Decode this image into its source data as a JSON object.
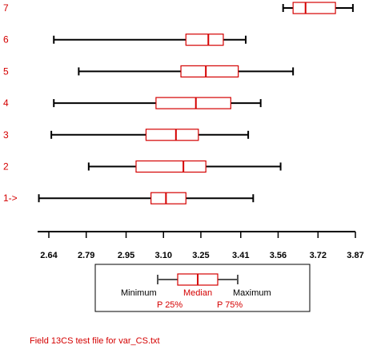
{
  "chart_data": {
    "type": "boxplot",
    "orientation": "horizontal",
    "categories": [
      "7",
      "6",
      "5",
      "4",
      "3",
      "2",
      "1->"
    ],
    "series": [
      {
        "label": "7",
        "min": 3.58,
        "q1": 3.62,
        "median": 3.67,
        "q3": 3.79,
        "max": 3.86
      },
      {
        "label": "6",
        "min": 2.66,
        "q1": 3.19,
        "median": 3.28,
        "q3": 3.34,
        "max": 3.43
      },
      {
        "label": "5",
        "min": 2.76,
        "q1": 3.17,
        "median": 3.27,
        "q3": 3.4,
        "max": 3.62
      },
      {
        "label": "4",
        "min": 2.66,
        "q1": 3.07,
        "median": 3.23,
        "q3": 3.37,
        "max": 3.49
      },
      {
        "label": "3",
        "min": 2.65,
        "q1": 3.03,
        "median": 3.15,
        "q3": 3.24,
        "max": 3.44
      },
      {
        "label": "2",
        "min": 2.8,
        "q1": 2.99,
        "median": 3.18,
        "q3": 3.27,
        "max": 3.57
      },
      {
        "label": "1->",
        "min": 2.6,
        "q1": 3.05,
        "median": 3.11,
        "q3": 3.19,
        "max": 3.46
      }
    ],
    "x_ticks": [
      "2.64",
      "2.79",
      "2.95",
      "3.10",
      "3.25",
      "3.41",
      "3.56",
      "3.72",
      "3.87"
    ],
    "xlim": [
      2.595,
      3.87
    ],
    "grid": false,
    "legend": {
      "position": "bottom-center",
      "minimum": "Minimum",
      "median": "Median",
      "maximum": "Maximum",
      "p25": "P 25%",
      "p75": "P 75%"
    },
    "footer": "Field 13CS test file for var_CS.txt",
    "colors": {
      "box": "#d40000",
      "whisker": "#000000",
      "label": "#d40000",
      "legend_whisker": "#555555"
    }
  }
}
